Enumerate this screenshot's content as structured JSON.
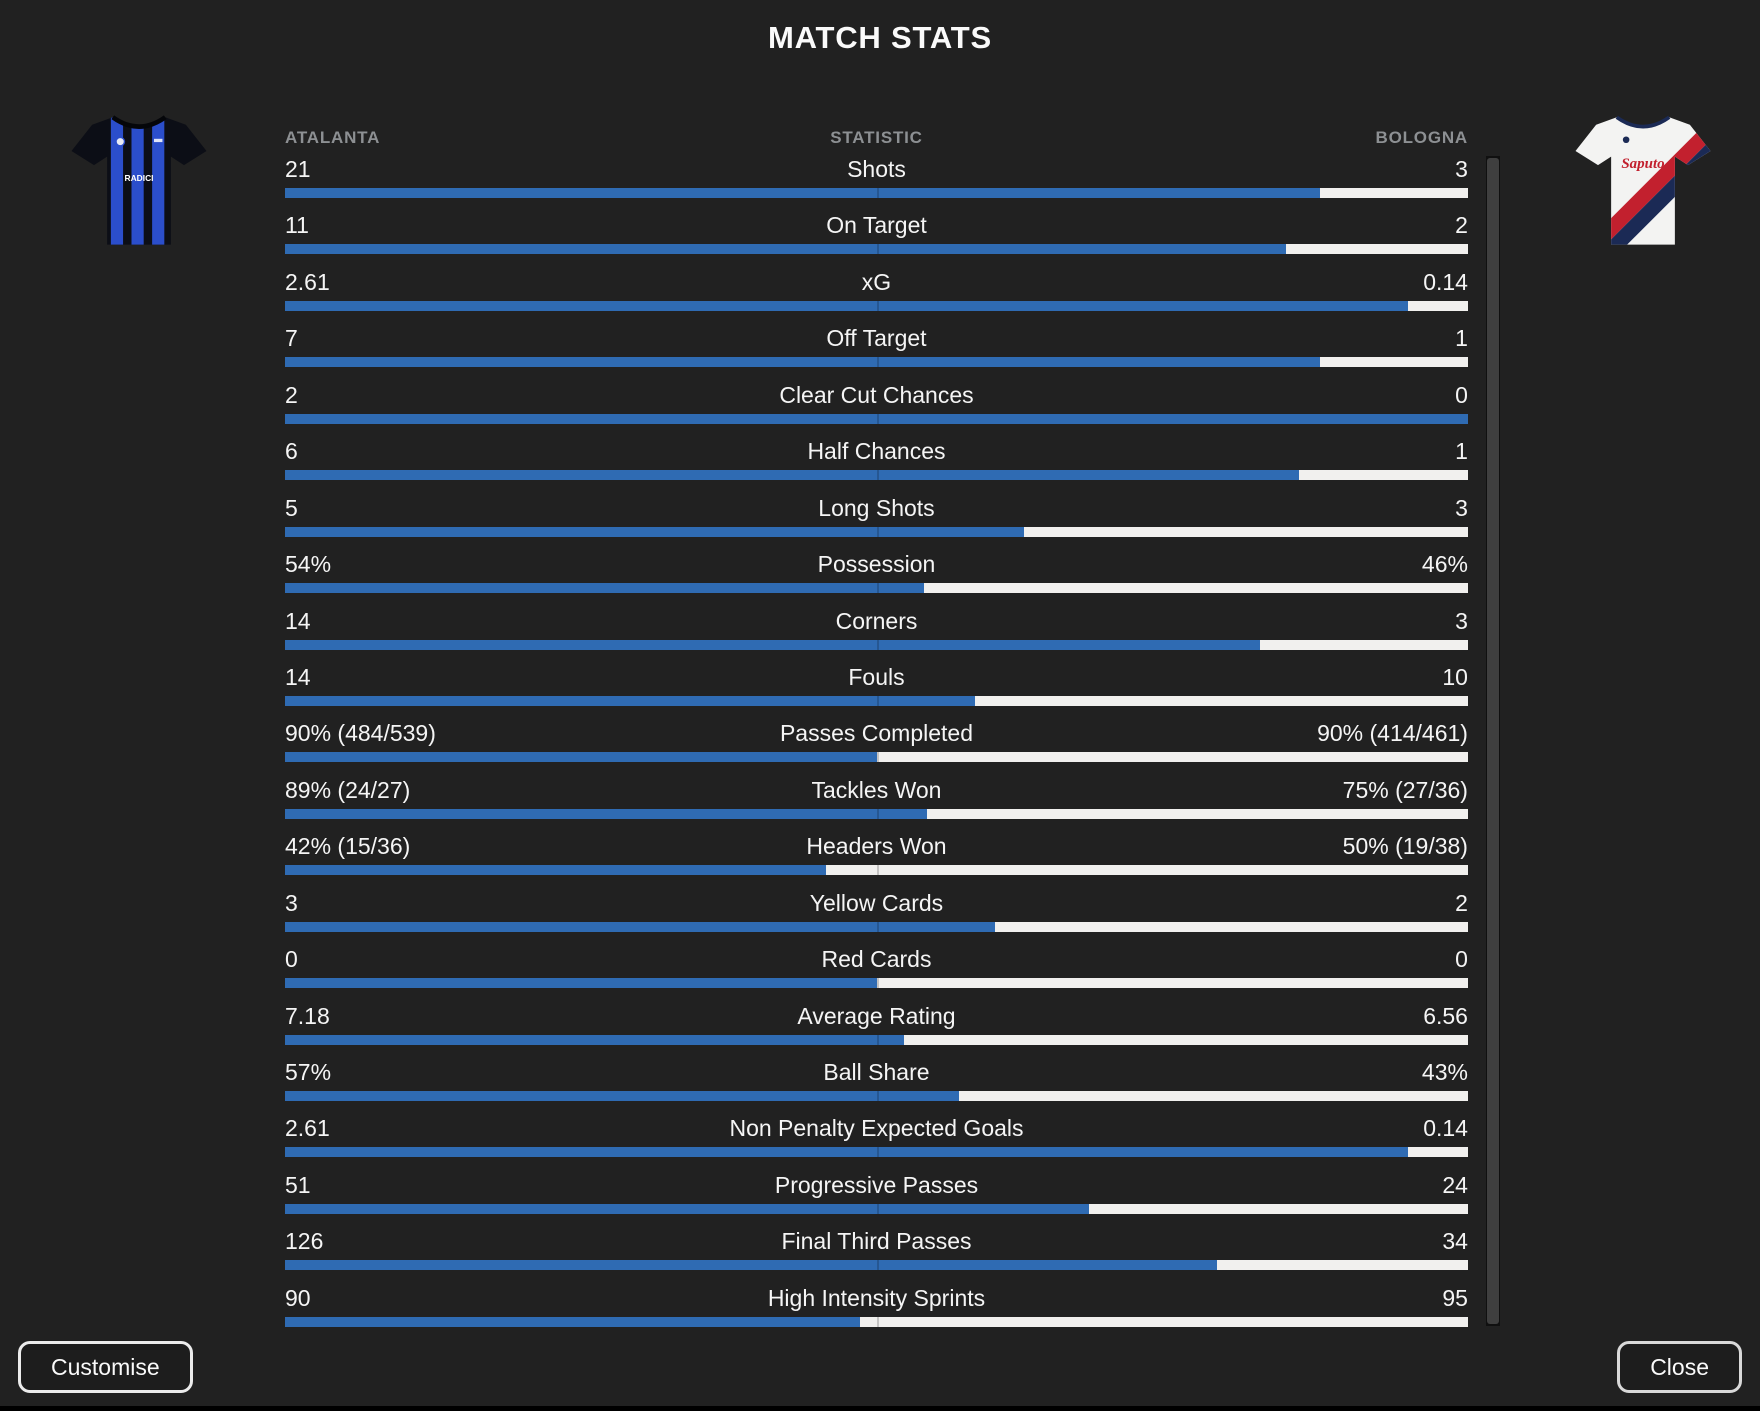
{
  "title": "MATCH STATS",
  "header": {
    "home_team": "ATALANTA",
    "statistic": "STATISTIC",
    "away_team": "BOLOGNA"
  },
  "teams": {
    "home": {
      "name": "Atalanta",
      "kit": "blue and black vertical stripes",
      "sponsor": "RADICI"
    },
    "away": {
      "name": "Bologna",
      "kit": "white with red and navy diagonal sash",
      "sponsor": "Saputo"
    }
  },
  "colors": {
    "home_bar": "#2f6bb3",
    "away_bar": "#f1f0ee",
    "background": "#212121",
    "muted_text": "#8d9093"
  },
  "stats": [
    {
      "label": "Shots",
      "home": "21",
      "away": "3",
      "home_pct": 87.5
    },
    {
      "label": "On Target",
      "home": "11",
      "away": "2",
      "home_pct": 84.6
    },
    {
      "label": "xG",
      "home": "2.61",
      "away": "0.14",
      "home_pct": 94.9
    },
    {
      "label": "Off Target",
      "home": "7",
      "away": "1",
      "home_pct": 87.5
    },
    {
      "label": "Clear Cut Chances",
      "home": "2",
      "away": "0",
      "home_pct": 100
    },
    {
      "label": "Half Chances",
      "home": "6",
      "away": "1",
      "home_pct": 85.7
    },
    {
      "label": "Long Shots",
      "home": "5",
      "away": "3",
      "home_pct": 62.5
    },
    {
      "label": "Possession",
      "home": "54%",
      "away": "46%",
      "home_pct": 54
    },
    {
      "label": "Corners",
      "home": "14",
      "away": "3",
      "home_pct": 82.4
    },
    {
      "label": "Fouls",
      "home": "14",
      "away": "10",
      "home_pct": 58.3
    },
    {
      "label": "Passes Completed",
      "home": "90% (484/539)",
      "away": "90% (414/461)",
      "home_pct": 50
    },
    {
      "label": "Tackles Won",
      "home": "89% (24/27)",
      "away": "75% (27/36)",
      "home_pct": 54.3
    },
    {
      "label": "Headers Won",
      "home": "42% (15/36)",
      "away": "50% (19/38)",
      "home_pct": 45.7
    },
    {
      "label": "Yellow Cards",
      "home": "3",
      "away": "2",
      "home_pct": 60
    },
    {
      "label": "Red Cards",
      "home": "0",
      "away": "0",
      "home_pct": 50
    },
    {
      "label": "Average Rating",
      "home": "7.18",
      "away": "6.56",
      "home_pct": 52.3
    },
    {
      "label": "Ball Share",
      "home": "57%",
      "away": "43%",
      "home_pct": 57
    },
    {
      "label": "Non Penalty Expected Goals",
      "home": "2.61",
      "away": "0.14",
      "home_pct": 94.9
    },
    {
      "label": "Progressive Passes",
      "home": "51",
      "away": "24",
      "home_pct": 68
    },
    {
      "label": "Final Third Passes",
      "home": "126",
      "away": "34",
      "home_pct": 78.8
    },
    {
      "label": "High Intensity Sprints",
      "home": "90",
      "away": "95",
      "home_pct": 48.6
    }
  ],
  "footer": {
    "customise": "Customise",
    "close": "Close"
  }
}
